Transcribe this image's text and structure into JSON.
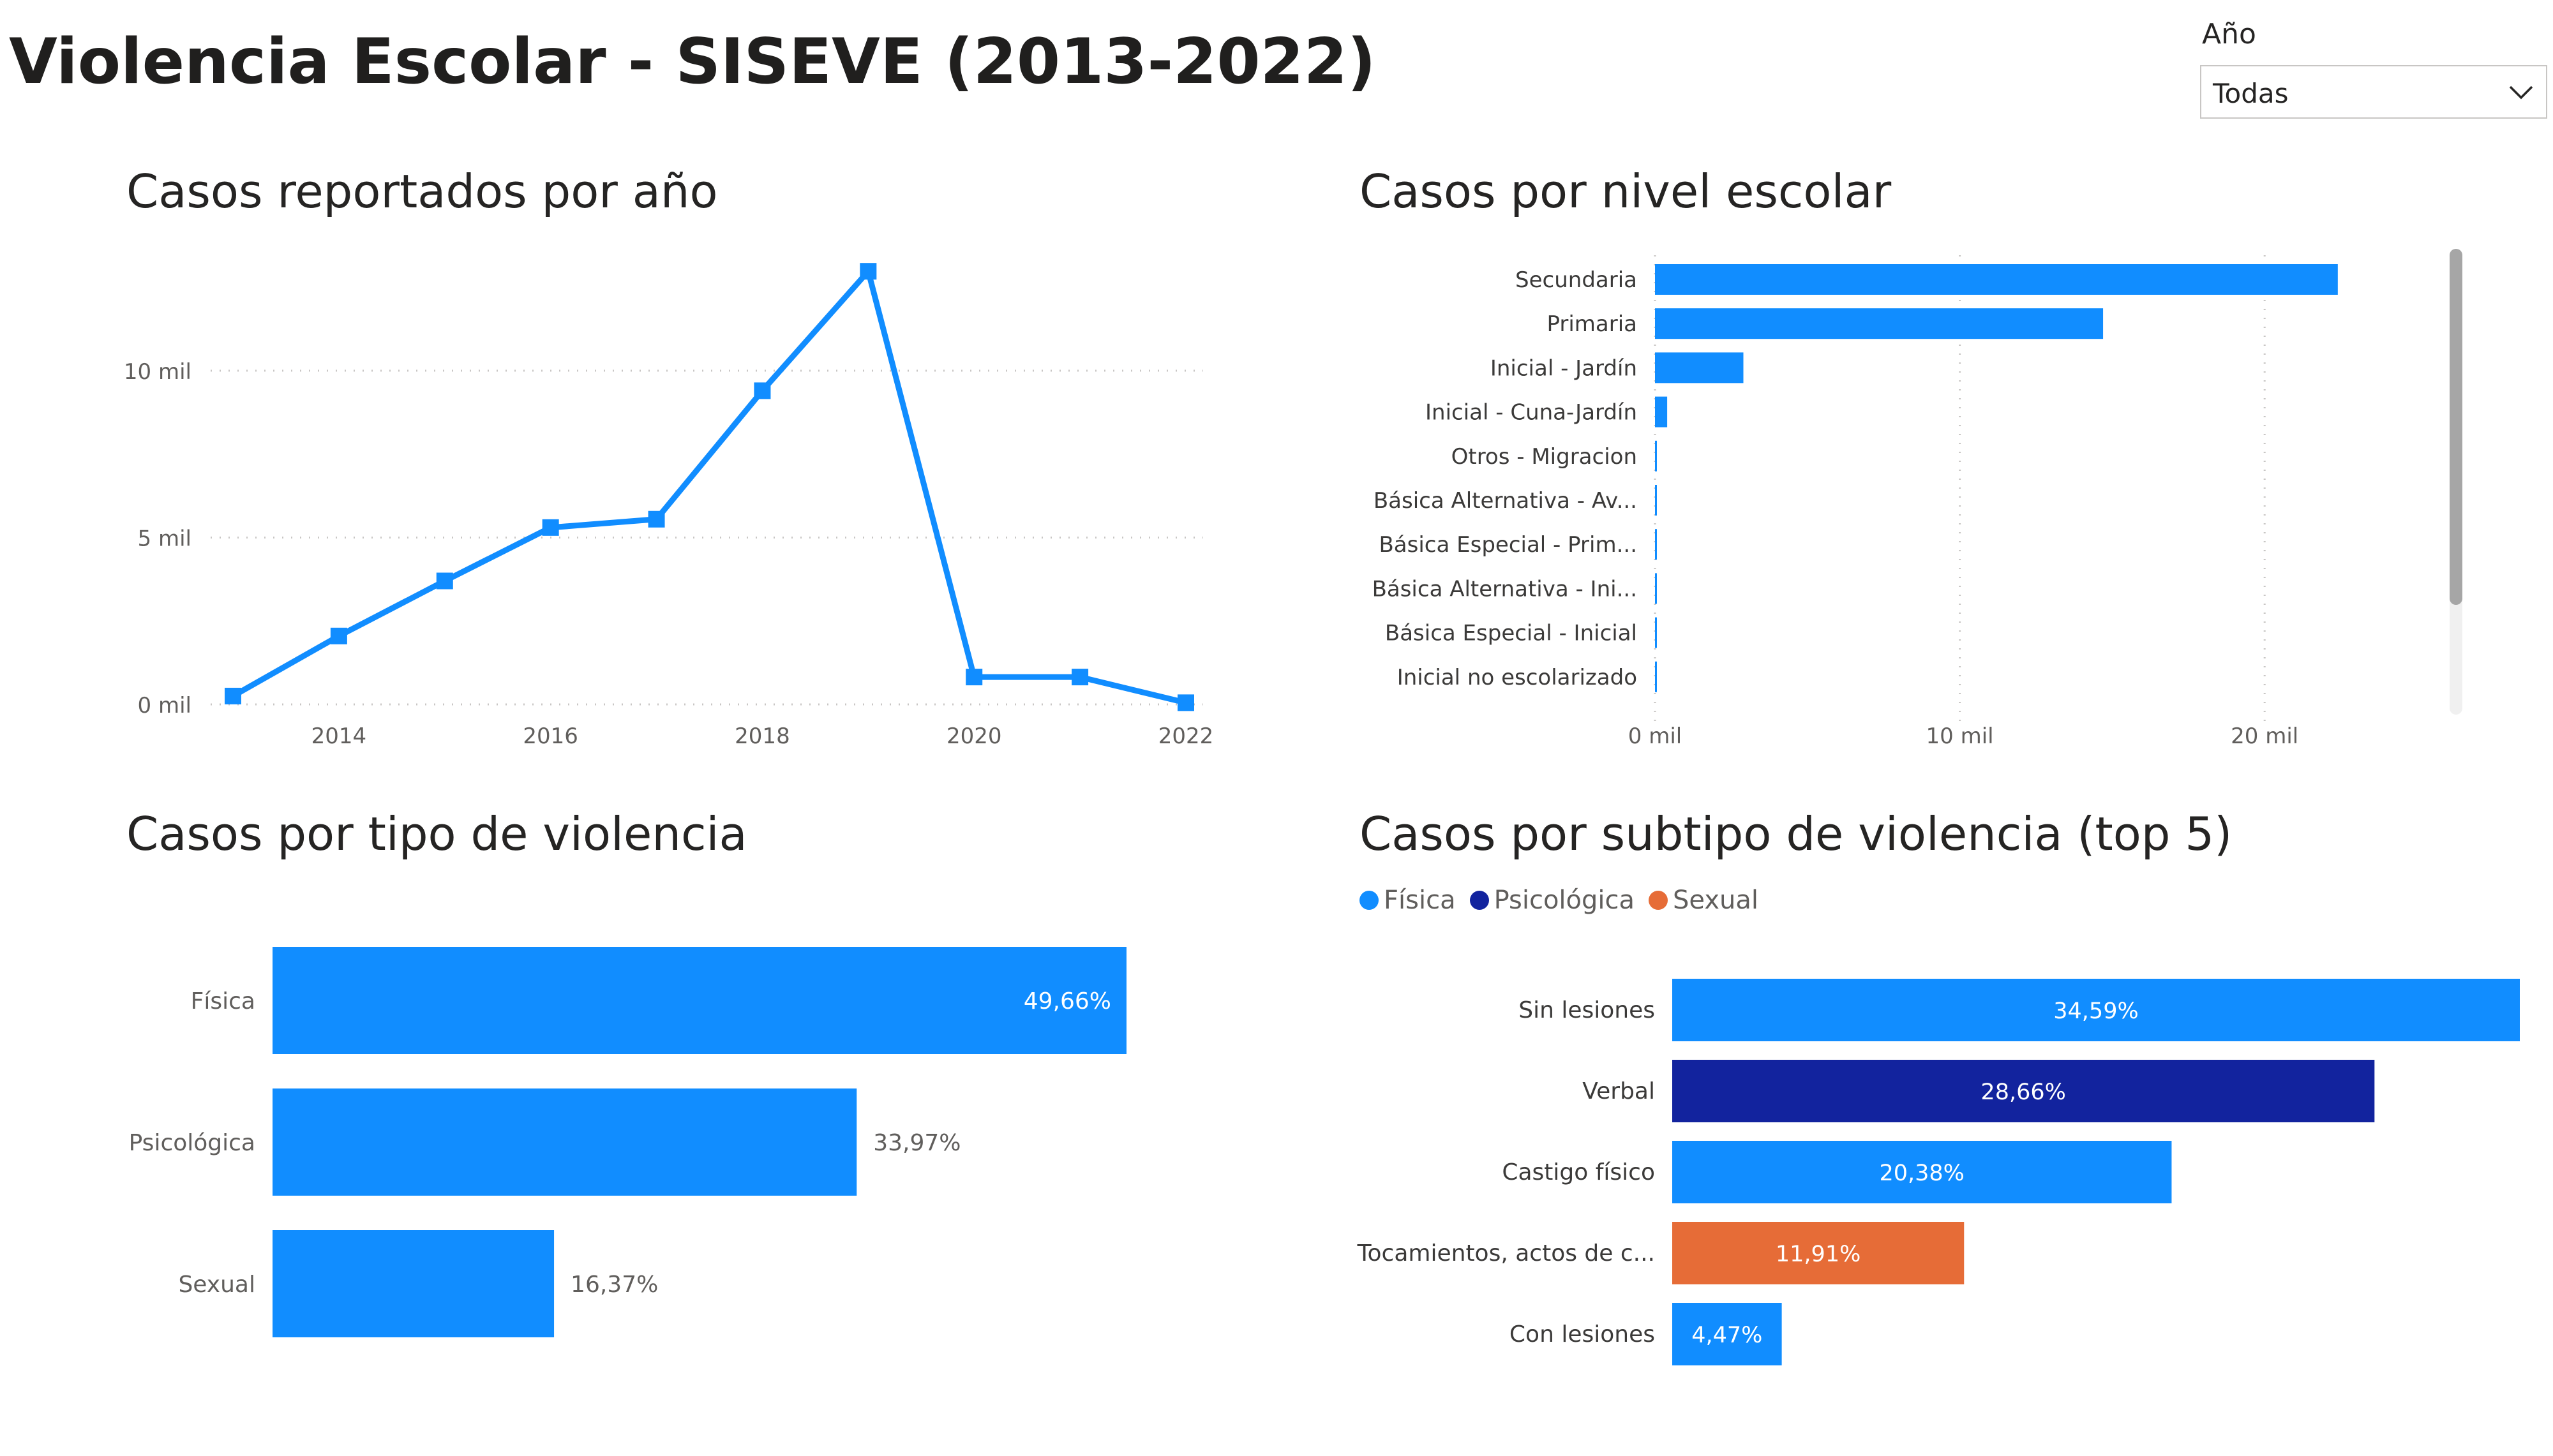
{
  "page": {
    "title": "Violencia Escolar - SISEVE (2013-2022)"
  },
  "slicer": {
    "label": "Año",
    "value": "Todas",
    "icon": "chevron-down-icon"
  },
  "colors": {
    "blue": "#118dff",
    "navy": "#12239e",
    "orange": "#e66c37",
    "grid": "#c8c6c4",
    "axis_text": "#605e5c",
    "scrollbar": "#a6a6a6"
  },
  "chart_data": [
    {
      "id": "cases-by-year",
      "type": "line",
      "title": "Casos reportados por año",
      "x": [
        2013,
        2014,
        2015,
        2016,
        2017,
        2018,
        2019,
        2020,
        2021,
        2022
      ],
      "values": [
        250,
        2050,
        3700,
        5300,
        5550,
        9400,
        12980,
        820,
        820,
        50
      ],
      "xticks": [
        "2014",
        "2016",
        "2018",
        "2020",
        "2022"
      ],
      "yticks": [
        "0 mil",
        "5 mil",
        "10 mil"
      ],
      "ylim": [
        0,
        13500
      ],
      "grid": true
    },
    {
      "id": "cases-by-level",
      "type": "bar",
      "orientation": "horizontal",
      "title": "Casos por nivel escolar",
      "categories": [
        "Secundaria",
        "Primaria",
        "Inicial - Jardín",
        "Inicial - Cuna-Jardín",
        "Otros - Migracion",
        "Básica Alternativa - Av...",
        "Básica Especial - Prim...",
        "Básica Alternativa - Ini...",
        "Básica Especial - Inicial",
        "Inicial no escolarizado"
      ],
      "values": [
        22400,
        14700,
        2900,
        400,
        60,
        50,
        40,
        30,
        20,
        10
      ],
      "xticks": [
        "0 mil",
        "10 mil",
        "20 mil"
      ],
      "xlim": [
        0,
        25000
      ],
      "grid": true
    },
    {
      "id": "cases-by-type",
      "type": "bar",
      "orientation": "horizontal",
      "title": "Casos por tipo de violencia",
      "categories": [
        "Física",
        "Psicológica",
        "Sexual"
      ],
      "values": [
        49.66,
        33.97,
        16.37
      ],
      "labels": [
        "49,66%",
        "33,97%",
        "16,37%"
      ]
    },
    {
      "id": "cases-by-subtype",
      "type": "bar",
      "orientation": "horizontal",
      "title": "Casos por subtipo de violencia (top 5)",
      "legend": [
        "Física",
        "Psicológica",
        "Sexual"
      ],
      "legend_position": "top-left",
      "categories": [
        "Sin lesiones",
        "Verbal",
        "Castigo físico",
        "Tocamientos, actos de c...",
        "Con lesiones"
      ],
      "values": [
        34.59,
        28.66,
        20.38,
        11.91,
        4.47
      ],
      "labels": [
        "34,59%",
        "28,66%",
        "20,38%",
        "11,91%",
        "4,47%"
      ],
      "groups": [
        "Física",
        "Psicológica",
        "Física",
        "Sexual",
        "Física"
      ]
    }
  ]
}
